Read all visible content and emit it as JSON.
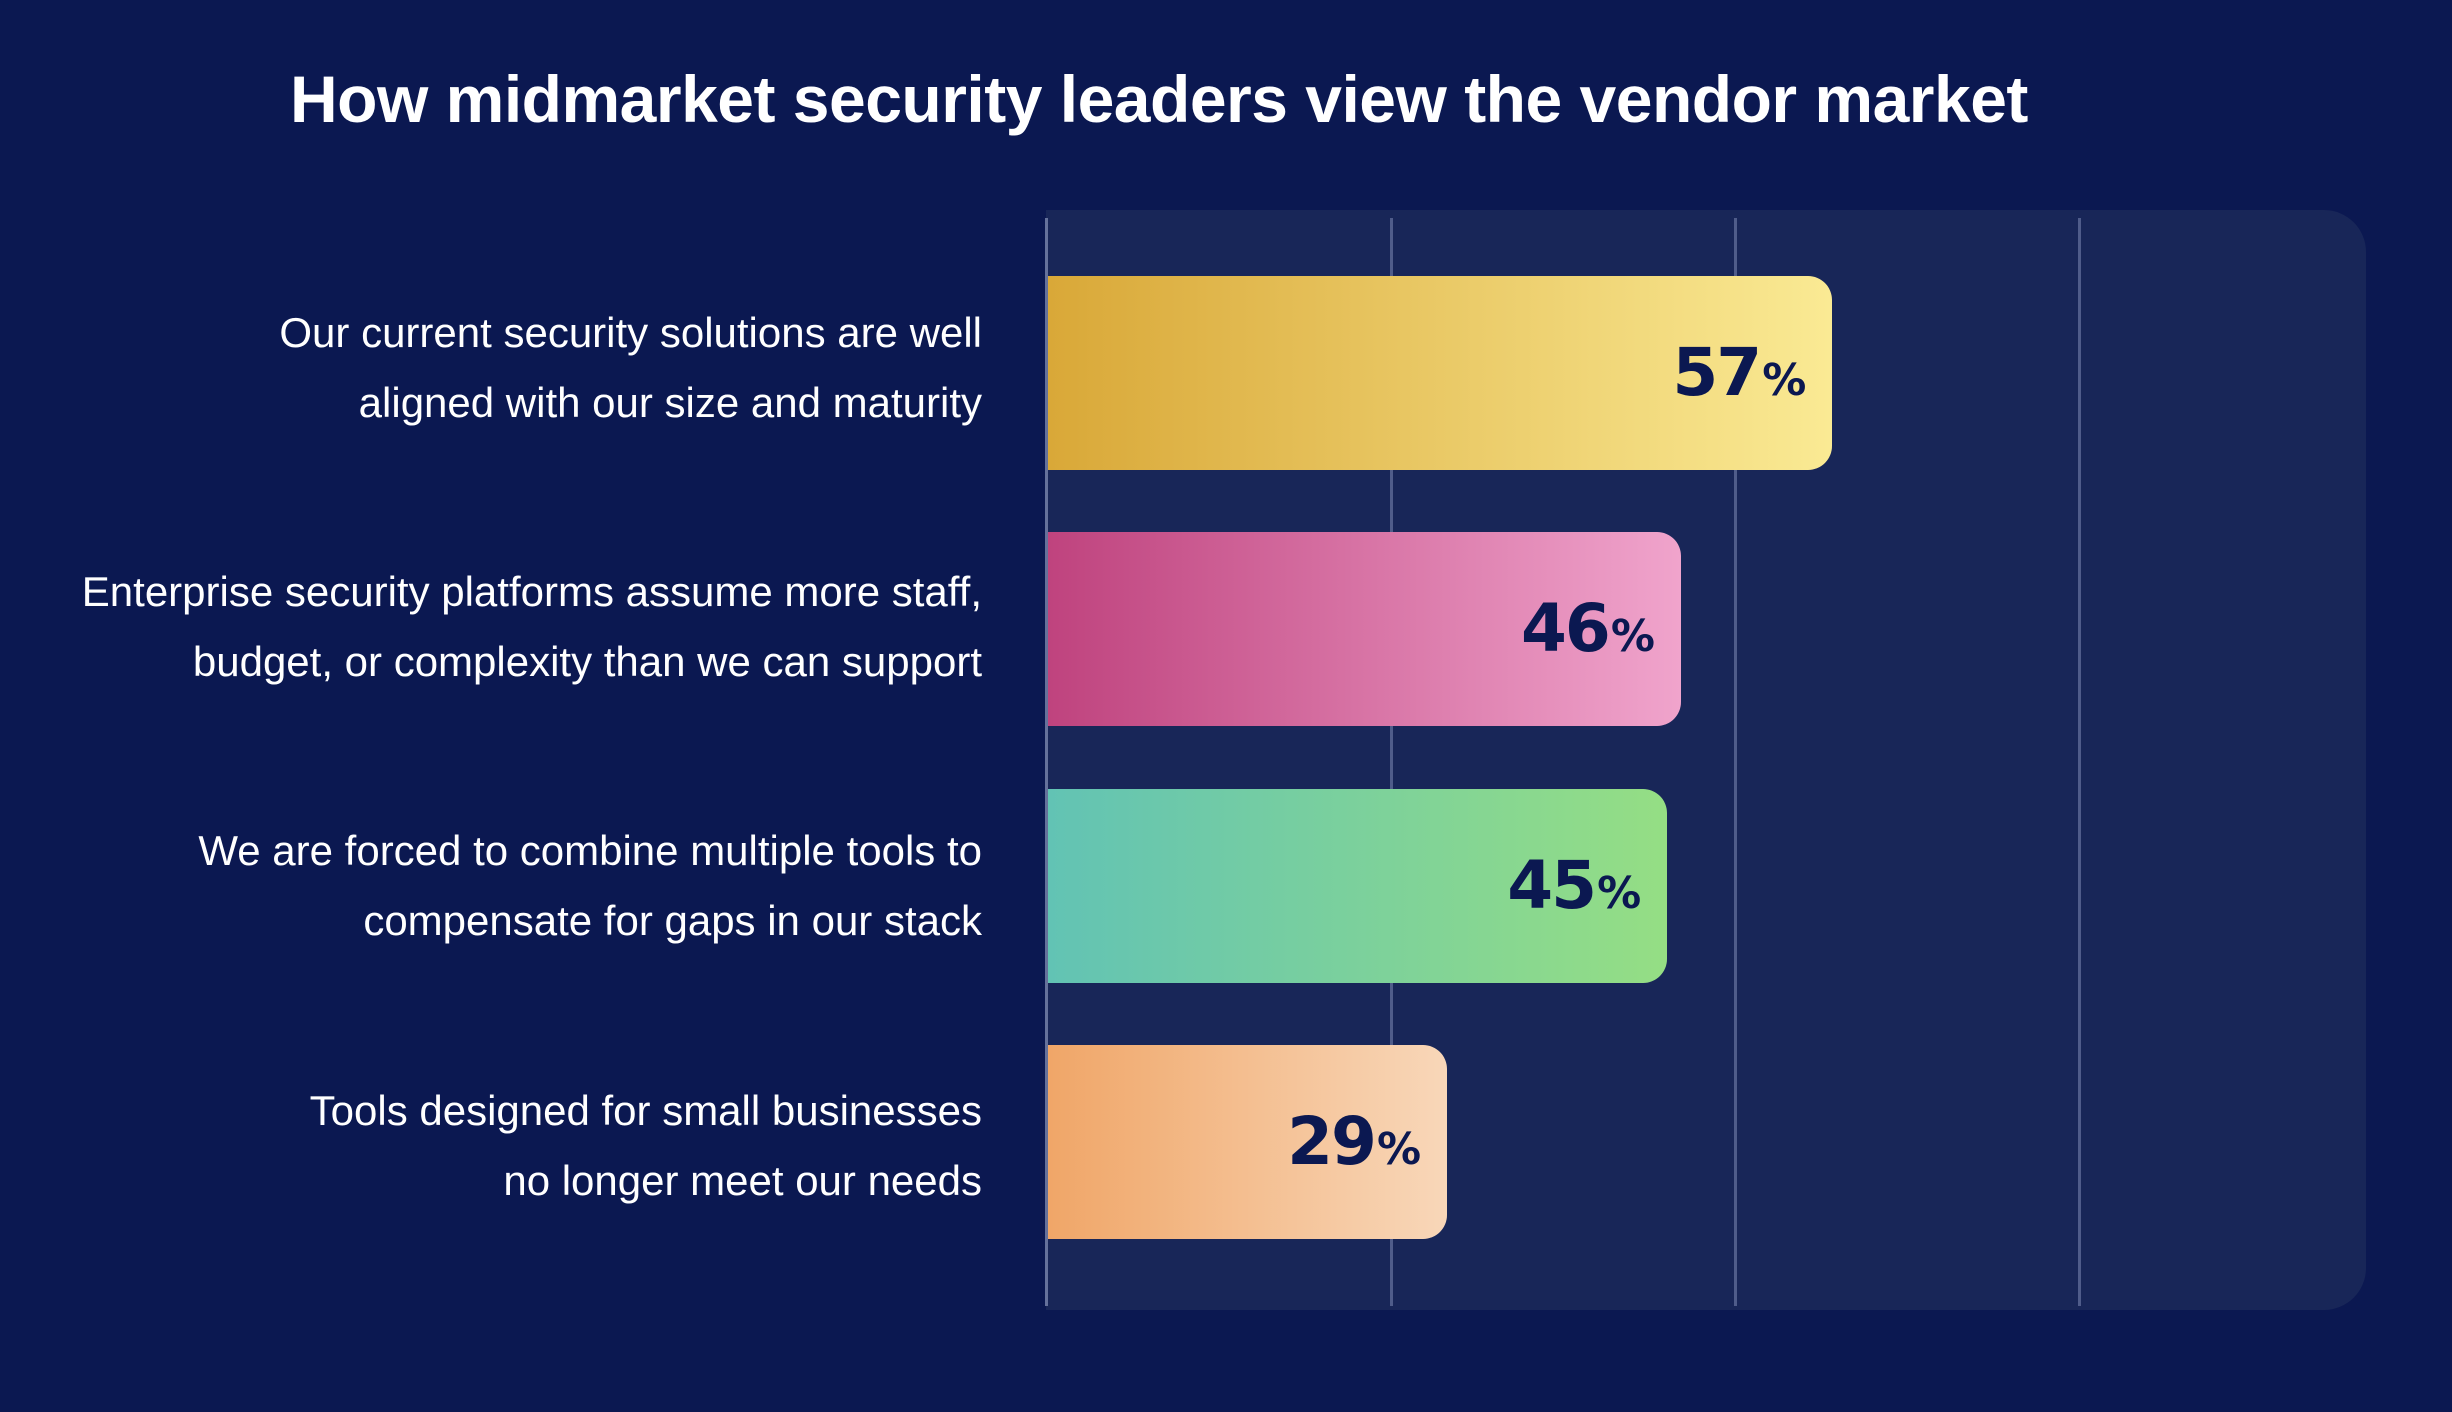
{
  "title": "How midmarket security leaders view the vendor market",
  "colors": {
    "background": "#0b1851",
    "plot_panel": "#182658",
    "gridline": "#4f5c8a",
    "text": "#ffffff",
    "value_text": "#0b1851"
  },
  "chart_data": {
    "type": "bar",
    "orientation": "horizontal",
    "title": "How midmarket security leaders view the vendor market",
    "xlabel": "",
    "ylabel": "",
    "xlim": [
      0,
      100
    ],
    "gridlines": [
      0,
      25,
      50,
      75
    ],
    "grid": true,
    "unit": "%",
    "categories": [
      "Our current security solutions are well\naligned with our size and maturity",
      "Enterprise security platforms assume more staff,\nbudget, or complexity than we can support",
      "We are forced to combine multiple tools to\ncompensate for gaps in our stack",
      "Tools designed for small businesses\nno longer meet our needs"
    ],
    "values": [
      57,
      46,
      45,
      29
    ],
    "value_labels": [
      "57",
      "46",
      "45",
      "29"
    ],
    "bar_colors": [
      {
        "start": "#d9a838",
        "end": "#faea94"
      },
      {
        "start": "#bf437e",
        "end": "#f0a4cc"
      },
      {
        "start": "#62c3b4",
        "end": "#95de84"
      },
      {
        "start": "#f0a668",
        "end": "#f8d7b9"
      }
    ]
  }
}
